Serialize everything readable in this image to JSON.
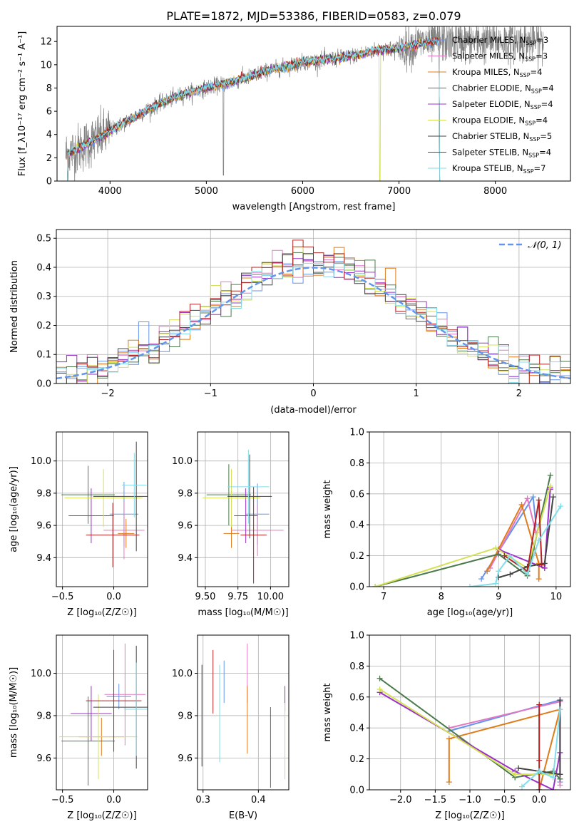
{
  "title": "PLATE=1872, MJD=53386, FIBERID=0583, z=0.079",
  "colors": {
    "Chabrier MILES": "#6495ed",
    "Salpeter MILES": "#e377c2",
    "Kroupa MILES": "#e07b1a",
    "Chabrier ELODIE": "#4c7a4c",
    "Salpeter ELODIE": "#9b30c8",
    "Kroupa ELODIE": "#d4e157",
    "Chabrier STELIB": "#444444",
    "Salpeter STELIB": "#b22222",
    "Kroupa STELIB": "#80deea",
    "data": "#808080",
    "normal": "#6495ed"
  },
  "chart_data": [
    {
      "id": "spectrum",
      "type": "line",
      "title": "PLATE=1872, MJD=53386, FIBERID=0583, z=0.079",
      "xlabel": "wavelength [Angstrom, rest frame]",
      "ylabel": "Flux [f_λ10⁻¹⁷ erg cm⁻² s⁻¹ A⁻¹]",
      "xlim": [
        3450,
        8780
      ],
      "ylim": [
        0,
        13.3
      ],
      "xticks": [
        "4000",
        "5000",
        "6000",
        "7000",
        "8000"
      ],
      "yticks": [
        "0",
        "2",
        "4",
        "6",
        "8",
        "10",
        "12"
      ],
      "legend_position": "upper-right",
      "legend": [
        "Chabrier MILES, N_SSP=3",
        "Salpeter MILES, N_SSP=3",
        "Kroupa MILES, N_SSP=4",
        "Chabrier ELODIE, N_SSP=4",
        "Salpeter ELODIE, N_SSP=4",
        "Kroupa ELODIE, N_SSP=4",
        "Chabrier STELIB, N_SSP=5",
        "Salpeter STELIB, N_SSP=4",
        "Kroupa STELIB, N_SSP=7"
      ],
      "legend_labels": [
        {
          "name": "Chabrier MILES",
          "sub": "3"
        },
        {
          "name": "Salpeter MILES",
          "sub": "3"
        },
        {
          "name": "Kroupa MILES",
          "sub": "4"
        },
        {
          "name": "Chabrier ELODIE",
          "sub": "4"
        },
        {
          "name": "Salpeter ELODIE",
          "sub": "4"
        },
        {
          "name": "Kroupa ELODIE",
          "sub": "4"
        },
        {
          "name": "Chabrier STELIB",
          "sub": "5"
        },
        {
          "name": "Salpeter STELIB",
          "sub": "4"
        },
        {
          "name": "Kroupa STELIB",
          "sub": "7"
        }
      ],
      "continuum": {
        "x": [
          3550,
          3700,
          3850,
          3950,
          4000,
          4100,
          4300,
          4500,
          4700,
          4860,
          5000,
          5200,
          5400,
          5600,
          5800,
          6000,
          6200,
          6400,
          6600,
          6800,
          7000,
          7200,
          7400,
          7500
        ],
        "y": [
          2.3,
          2.9,
          3.6,
          4.0,
          4.3,
          4.8,
          5.7,
          6.6,
          7.3,
          7.7,
          8.0,
          8.4,
          8.8,
          9.4,
          9.8,
          10.2,
          10.4,
          10.6,
          10.9,
          11.3,
          11.4,
          11.8,
          12.0,
          12.0
        ]
      },
      "model_range": [
        3540,
        7430
      ],
      "data_range": [
        3540,
        8500
      ]
    },
    {
      "id": "residuals",
      "type": "bar",
      "xlabel": "(data-model)/error",
      "ylabel": "Normed distribution",
      "xlim": [
        -2.5,
        2.5
      ],
      "ylim": [
        0,
        0.53
      ],
      "xticks": [
        "−2",
        "−1",
        "0",
        "1",
        "2"
      ],
      "yticks": [
        "0.0",
        "0.1",
        "0.2",
        "0.3",
        "0.4",
        "0.5"
      ],
      "bin_width": 0.1,
      "legend": [
        "𝒩(0, 1)"
      ],
      "legend_position": "upper-right",
      "normal": {
        "mean": 0,
        "sigma": 1
      }
    },
    {
      "id": "age-vs-Z",
      "type": "scatter",
      "xlabel": "Z [log₁₀(Z/Z☉)]",
      "ylabel": "age  [log₁₀(age/yr)]",
      "xlim": [
        -0.56,
        0.33
      ],
      "ylim": [
        9.22,
        10.18
      ],
      "xticks": [
        -0.5,
        0.0
      ],
      "yticks": [
        9.4,
        9.6,
        9.8,
        10.0
      ],
      "points": [
        {
          "series": "Chabrier MILES",
          "x": 0.1,
          "xerr": 0.14,
          "y": 9.67,
          "yerr": 0.2
        },
        {
          "series": "Salpeter MILES",
          "x": 0.1,
          "xerr": 0.2,
          "y": 9.57,
          "yerr": 0.18
        },
        {
          "series": "Kroupa MILES",
          "x": 0.12,
          "xerr": 0.08,
          "y": 9.55,
          "yerr": 0.09
        },
        {
          "series": "Chabrier ELODIE",
          "x": -0.25,
          "xerr": 0.26,
          "y": 9.79,
          "yerr": 0.18
        },
        {
          "series": "Salpeter ELODIE",
          "x": -0.22,
          "xerr": 0.22,
          "y": 9.66,
          "yerr": 0.17
        },
        {
          "series": "Kroupa ELODIE",
          "x": -0.1,
          "xerr": 0.38,
          "y": 9.77,
          "yerr": 0.18
        },
        {
          "series": "Chabrier STELIB",
          "x": 0.22,
          "xerr": 0.42,
          "y": 9.78,
          "yerr": 0.34
        },
        {
          "series": "Salpeter STELIB",
          "x": -0.01,
          "xerr": 0.26,
          "y": 9.54,
          "yerr": 0.2
        },
        {
          "series": "Kroupa STELIB",
          "x": 0.2,
          "xerr": 0.12,
          "y": 9.85,
          "yerr": 0.2
        }
      ]
    },
    {
      "id": "age-vs-mass",
      "type": "scatter",
      "xlabel": "mass [log₁₀(M/M☉)]",
      "ylabel": "",
      "xlim": [
        9.44,
        10.14
      ],
      "ylim": [
        9.22,
        10.18
      ],
      "xticks": [
        9.5,
        9.75,
        10.0
      ],
      "yticks": [
        9.4,
        9.6,
        9.8,
        10.0
      ],
      "points": [
        {
          "series": "Chabrier MILES",
          "x": 9.9,
          "xerr": 0.09,
          "y": 9.67,
          "yerr": 0.19
        },
        {
          "series": "Salpeter MILES",
          "x": 9.9,
          "xerr": 0.2,
          "y": 9.57,
          "yerr": 0.16
        },
        {
          "series": "Kroupa MILES",
          "x": 9.7,
          "xerr": 0.06,
          "y": 9.55,
          "yerr": 0.09
        },
        {
          "series": "Chabrier ELODIE",
          "x": 9.68,
          "xerr": 0.17,
          "y": 9.79,
          "yerr": 0.19
        },
        {
          "series": "Salpeter ELODIE",
          "x": 9.81,
          "xerr": 0.09,
          "y": 9.66,
          "yerr": 0.17
        },
        {
          "series": "Kroupa ELODIE",
          "x": 9.7,
          "xerr": 0.22,
          "y": 9.77,
          "yerr": 0.18
        },
        {
          "series": "Chabrier STELIB",
          "x": 9.84,
          "xerr": 0.17,
          "y": 9.78,
          "yerr": 0.26
        },
        {
          "series": "Salpeter STELIB",
          "x": 9.87,
          "xerr": 0.1,
          "y": 9.54,
          "yerr": 0.3
        },
        {
          "series": "Kroupa STELIB",
          "x": 9.83,
          "xerr": 0.16,
          "y": 9.84,
          "yerr": 0.23
        }
      ]
    },
    {
      "id": "massweight-vs-age",
      "type": "line",
      "xlabel": "age  [log₁₀(age/yr)]",
      "ylabel": "mass weight",
      "xlim": [
        6.75,
        10.25
      ],
      "ylim": [
        0,
        1.0
      ],
      "xticks": [
        7,
        8,
        9,
        10
      ],
      "yticks": [
        0.0,
        0.2,
        0.4,
        0.6,
        0.8,
        1.0
      ],
      "series": [
        {
          "name": "Chabrier MILES",
          "x": [
            8.7,
            9.6,
            9.65
          ],
          "y": [
            0.05,
            0.58,
            0.4
          ]
        },
        {
          "name": "Salpeter MILES",
          "x": [
            8.85,
            9.5,
            9.65
          ],
          "y": [
            0.12,
            0.57,
            0.35
          ]
        },
        {
          "name": "Kroupa MILES",
          "x": [
            8.8,
            9.4,
            9.7,
            9.7
          ],
          "y": [
            0.1,
            0.53,
            0.15,
            0.05
          ]
        },
        {
          "name": "Chabrier ELODIE",
          "x": [
            6.85,
            9.0,
            9.5,
            9.9
          ],
          "y": [
            0.0,
            0.21,
            0.07,
            0.72
          ]
        },
        {
          "name": "Salpeter ELODIE",
          "x": [
            9.0,
            9.8,
            9.9,
            9.9
          ],
          "y": [
            0.24,
            0.12,
            0.64,
            0.63
          ]
        },
        {
          "name": "Kroupa ELODIE",
          "x": [
            6.85,
            8.95,
            9.5,
            9.9
          ],
          "y": [
            0.0,
            0.25,
            0.12,
            0.65
          ]
        },
        {
          "name": "Chabrier STELIB",
          "x": [
            9.0,
            9.2,
            9.5,
            9.8,
            9.95
          ],
          "y": [
            0.06,
            0.08,
            0.13,
            0.15,
            0.58
          ]
        },
        {
          "name": "Salpeter STELIB",
          "x": [
            9.1,
            9.5,
            9.7,
            9.75
          ],
          "y": [
            0.2,
            0.1,
            0.56,
            0.14
          ]
        },
        {
          "name": "Kroupa STELIB",
          "x": [
            8.5,
            8.95,
            9.0,
            9.2,
            9.5,
            9.7,
            10.08
          ],
          "y": [
            0.0,
            0.02,
            0.1,
            0.2,
            0.08,
            0.3,
            0.52
          ]
        }
      ]
    },
    {
      "id": "mass-vs-Z",
      "type": "scatter",
      "xlabel": "Z [log₁₀(Z/Z☉)]",
      "ylabel": "mass [log₁₀(M/M☉)]",
      "xlim": [
        -0.56,
        0.33
      ],
      "ylim": [
        9.45,
        10.18
      ],
      "xticks": [
        -0.5,
        0.0
      ],
      "yticks": [
        9.6,
        9.8,
        10.0
      ],
      "points": [
        {
          "series": "Chabrier MILES",
          "x": 0.05,
          "xerr": 0.12,
          "y": 9.89,
          "yerr": 0.06
        },
        {
          "series": "Salpeter MILES",
          "x": 0.11,
          "xerr": 0.2,
          "y": 9.9,
          "yerr": 0.24
        },
        {
          "series": "Kroupa MILES",
          "x": -0.12,
          "xerr": 0.22,
          "y": 9.7,
          "yerr": 0.09
        },
        {
          "series": "Chabrier ELODIE",
          "x": -0.25,
          "xerr": 0.26,
          "y": 9.68,
          "yerr": 0.21
        },
        {
          "series": "Salpeter ELODIE",
          "x": -0.22,
          "xerr": 0.2,
          "y": 9.81,
          "yerr": 0.13
        },
        {
          "series": "Kroupa ELODIE",
          "x": -0.15,
          "xerr": 0.38,
          "y": 9.7,
          "yerr": 0.2
        },
        {
          "series": "Chabrier STELIB",
          "x": 0.22,
          "xerr": 0.42,
          "y": 9.84,
          "yerr": 0.29
        },
        {
          "series": "Salpeter STELIB",
          "x": 0.0,
          "xerr": 0.27,
          "y": 9.87,
          "yerr": 0.24
        },
        {
          "series": "Kroupa STELIB",
          "x": 0.22,
          "xerr": 0.12,
          "y": 9.83,
          "yerr": 0.22
        }
      ]
    },
    {
      "id": "mass-vs-EBV",
      "type": "scatter",
      "xlabel": "E(B-V)",
      "ylabel": "",
      "xlim": [
        0.29,
        0.455
      ],
      "ylim": [
        9.45,
        10.18
      ],
      "xticks": [
        0.3,
        0.4
      ],
      "yticks": [
        9.6,
        9.8,
        10.0
      ],
      "points": [
        {
          "series": "Chabrier MILES",
          "x": 0.338,
          "y": 9.96,
          "yerr": 0.1
        },
        {
          "series": "Salpeter MILES",
          "x": 0.38,
          "y": 10.0,
          "yerr": 0.14
        },
        {
          "series": "Kroupa MILES",
          "x": 0.38,
          "y": 9.78,
          "yerr": 0.16
        },
        {
          "series": "Chabrier ELODIE",
          "x": 0.422,
          "y": 9.65,
          "yerr": 0.19
        },
        {
          "series": "Salpeter ELODIE",
          "x": 0.448,
          "y": 9.88,
          "yerr": 0.06
        },
        {
          "series": "Kroupa ELODIE",
          "x": 0.448,
          "y": 9.68,
          "yerr": 0.18
        },
        {
          "series": "Chabrier STELIB",
          "x": 0.298,
          "y": 9.8,
          "yerr": 0.24
        },
        {
          "series": "Salpeter STELIB",
          "x": 0.318,
          "y": 9.96,
          "yerr": 0.15
        },
        {
          "series": "Kroupa STELIB",
          "x": 0.33,
          "y": 9.81,
          "yerr": 0.23
        }
      ]
    },
    {
      "id": "massweight-vs-Z",
      "type": "line",
      "xlabel": "Z [log₁₀(Z/Z☉)]",
      "ylabel": "mass weight",
      "xlim": [
        -2.45,
        0.45
      ],
      "ylim": [
        0,
        1.0
      ],
      "xticks": [
        -2.0,
        -1.5,
        -1.0,
        -0.5,
        0.0
      ],
      "yticks": [
        0.0,
        0.2,
        0.4,
        0.6,
        0.8,
        1.0
      ],
      "series": [
        {
          "name": "Chabrier MILES",
          "x": [
            -1.3,
            0.3,
            0.3
          ],
          "y": [
            0.38,
            0.58,
            0.05
          ]
        },
        {
          "name": "Salpeter MILES",
          "x": [
            -1.3,
            0.3,
            0.3
          ],
          "y": [
            0.4,
            0.57,
            0.03
          ]
        },
        {
          "name": "Kroupa MILES",
          "x": [
            -1.3,
            -1.3,
            0.3,
            0.0
          ],
          "y": [
            0.05,
            0.33,
            0.52,
            0.0
          ]
        },
        {
          "name": "Chabrier ELODIE",
          "x": [
            -2.3,
            -0.35,
            0.2,
            0.3
          ],
          "y": [
            0.72,
            0.08,
            0.12,
            0.07
          ]
        },
        {
          "name": "Salpeter ELODIE",
          "x": [
            -2.3,
            -0.35,
            0.2,
            0.3
          ],
          "y": [
            0.63,
            0.12,
            0.0,
            0.24
          ]
        },
        {
          "name": "Kroupa ELODIE",
          "x": [
            -2.3,
            -0.35,
            0.3
          ],
          "y": [
            0.65,
            0.1,
            0.1
          ]
        },
        {
          "name": "Chabrier STELIB",
          "x": [
            -0.3,
            0.3,
            0.3
          ],
          "y": [
            0.14,
            0.1,
            0.58
          ]
        },
        {
          "name": "Salpeter STELIB",
          "x": [
            0.0,
            0.0,
            0.0
          ],
          "y": [
            0.55,
            0.19,
            0.0
          ]
        },
        {
          "name": "Kroupa STELIB",
          "x": [
            -0.25,
            0.0,
            0.2,
            0.3
          ],
          "y": [
            0.02,
            0.12,
            0.08,
            0.52
          ]
        }
      ]
    }
  ]
}
